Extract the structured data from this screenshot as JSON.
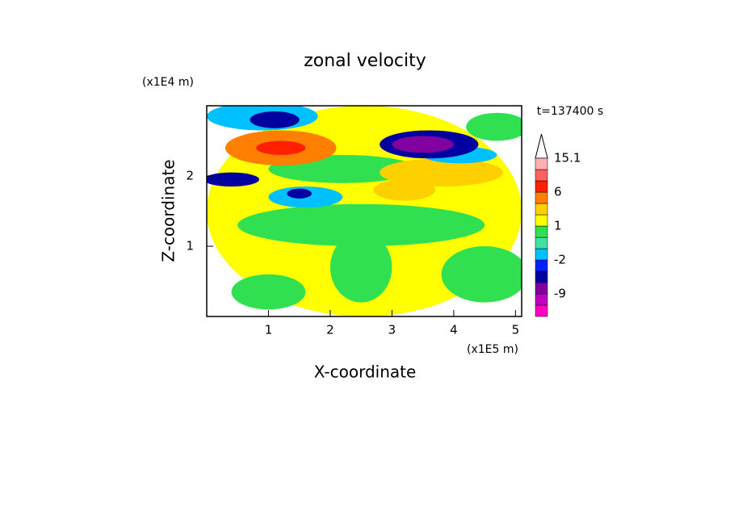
{
  "chart_data": {
    "type": "contour",
    "title": "zonal velocity",
    "x_label": "X-coordinate",
    "y_label": "Z-coordinate",
    "x_unit": "(x1E5 m)",
    "y_unit": "(x1E4 m)",
    "time_label": "t=137400 s",
    "xlim": [
      0,
      5.1
    ],
    "xticks": [
      1,
      2,
      3,
      4,
      5
    ],
    "ylim": [
      0,
      3
    ],
    "yticks": [
      1,
      2
    ],
    "colorbar": {
      "levels": [
        -15,
        -12,
        -9,
        -6,
        -3,
        -2,
        -1,
        0,
        1,
        2,
        4,
        6,
        9,
        12,
        15.1
      ],
      "colors": [
        "#ff00c0",
        "#c000c0",
        "#8000a0",
        "#0000a0",
        "#0020ff",
        "#00c0ff",
        "#40e0a0",
        "#30e050",
        "#ffff00",
        "#ffd000",
        "#ff8000",
        "#ff2000",
        "#ff6060",
        "#ffb0b0"
      ],
      "ticks": [
        -9,
        -2,
        1,
        6,
        15.1
      ]
    },
    "field": [
      {
        "x": 2.55,
        "z": 1.5,
        "rx": 2.55,
        "rz": 1.5,
        "value": 1.5
      },
      {
        "x": 2.5,
        "z": 1.3,
        "rx": 2.0,
        "rz": 0.3,
        "value": 0.5
      },
      {
        "x": 4.5,
        "z": 0.6,
        "rx": 0.7,
        "rz": 0.4,
        "value": 0.5
      },
      {
        "x": 2.5,
        "z": 0.7,
        "rx": 0.5,
        "rz": 0.5,
        "value": 0.5
      },
      {
        "x": 1.0,
        "z": 0.35,
        "rx": 0.6,
        "rz": 0.25,
        "value": 0.5
      },
      {
        "x": 2.2,
        "z": 2.1,
        "rx": 1.2,
        "rz": 0.2,
        "value": 0.5
      },
      {
        "x": 4.7,
        "z": 2.7,
        "rx": 0.5,
        "rz": 0.2,
        "value": 0.5
      },
      {
        "x": 1.2,
        "z": 2.4,
        "rx": 0.9,
        "rz": 0.25,
        "value": 5
      },
      {
        "x": 1.2,
        "z": 2.4,
        "rx": 0.4,
        "rz": 0.1,
        "value": 7
      },
      {
        "x": 3.8,
        "z": 2.05,
        "rx": 1.0,
        "rz": 0.2,
        "value": 3
      },
      {
        "x": 3.2,
        "z": 1.8,
        "rx": 0.5,
        "rz": 0.15,
        "value": 3
      },
      {
        "x": 0.9,
        "z": 2.85,
        "rx": 0.9,
        "rz": 0.2,
        "value": -1.5
      },
      {
        "x": 1.1,
        "z": 2.8,
        "rx": 0.4,
        "rz": 0.12,
        "value": -5
      },
      {
        "x": 0.4,
        "z": 1.95,
        "rx": 0.45,
        "rz": 0.1,
        "value": -5
      },
      {
        "x": 1.6,
        "z": 1.7,
        "rx": 0.6,
        "rz": 0.15,
        "value": -1.5
      },
      {
        "x": 1.5,
        "z": 1.75,
        "rx": 0.2,
        "rz": 0.07,
        "value": -4
      },
      {
        "x": 4.1,
        "z": 2.3,
        "rx": 0.6,
        "rz": 0.12,
        "value": -1.5
      },
      {
        "x": 3.6,
        "z": 2.45,
        "rx": 0.8,
        "rz": 0.2,
        "value": -4
      },
      {
        "x": 3.5,
        "z": 2.45,
        "rx": 0.5,
        "rz": 0.12,
        "value": -7
      }
    ]
  }
}
